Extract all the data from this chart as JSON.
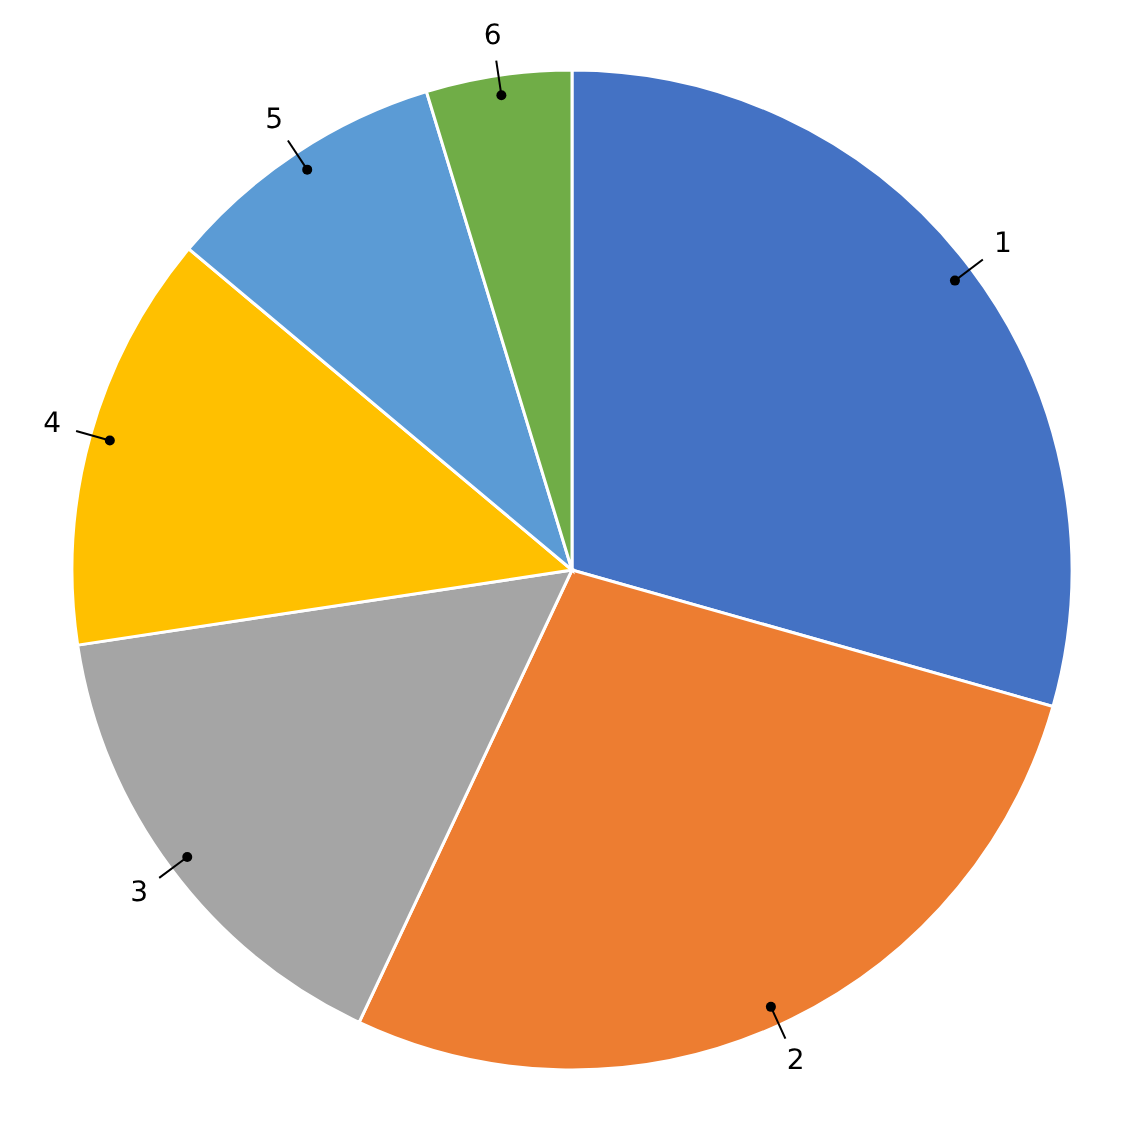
{
  "chart_data": {
    "type": "pie",
    "categories": [
      "1",
      "2",
      "3",
      "4",
      "5",
      "6"
    ],
    "values": [
      29.4,
      27.6,
      15.6,
      13.5,
      9.2,
      4.7
    ],
    "colors": [
      "#4472c4",
      "#ed7d31",
      "#a5a5a5",
      "#ffc000",
      "#5b9bd5",
      "#70ad47"
    ]
  }
}
